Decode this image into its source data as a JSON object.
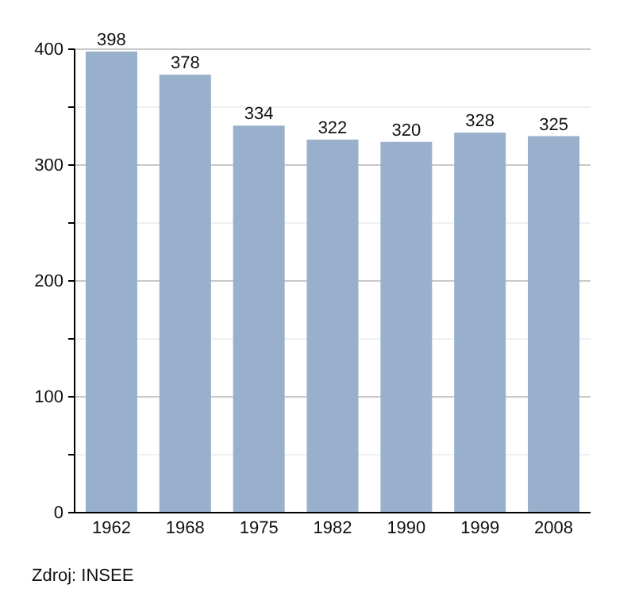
{
  "chart_data": {
    "type": "bar",
    "categories": [
      "1962",
      "1968",
      "1975",
      "1982",
      "1990",
      "1999",
      "2008"
    ],
    "values": [
      398,
      378,
      334,
      322,
      320,
      328,
      325
    ],
    "color": "#98b0cc",
    "data_labels": true,
    "ylim": [
      0,
      400
    ],
    "yticks": [
      0,
      {
        "value": 50,
        "label": null
      },
      100,
      {
        "value": 150,
        "label": null
      },
      200,
      {
        "value": 250,
        "label": null
      },
      300,
      {
        "value": 350,
        "label": null
      },
      400
    ],
    "grid": "y",
    "annotations": [
      "Zdroj: INSEE"
    ]
  }
}
